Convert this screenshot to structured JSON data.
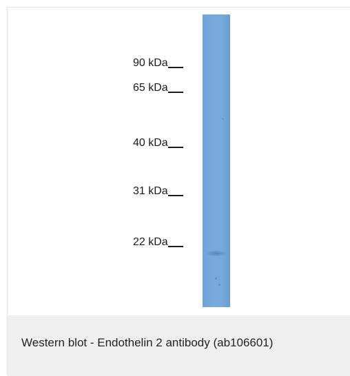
{
  "figure": {
    "markers": [
      {
        "label": "90 kDa"
      },
      {
        "label": "65 kDa"
      },
      {
        "label": "40 kDa"
      },
      {
        "label": "31 kDa"
      },
      {
        "label": "22 kDa"
      }
    ],
    "caption": "Western blot - Endothelin 2 antibody (ab106601)",
    "colors": {
      "lane": "#76a8dc",
      "caption_background": "#efefef"
    }
  }
}
